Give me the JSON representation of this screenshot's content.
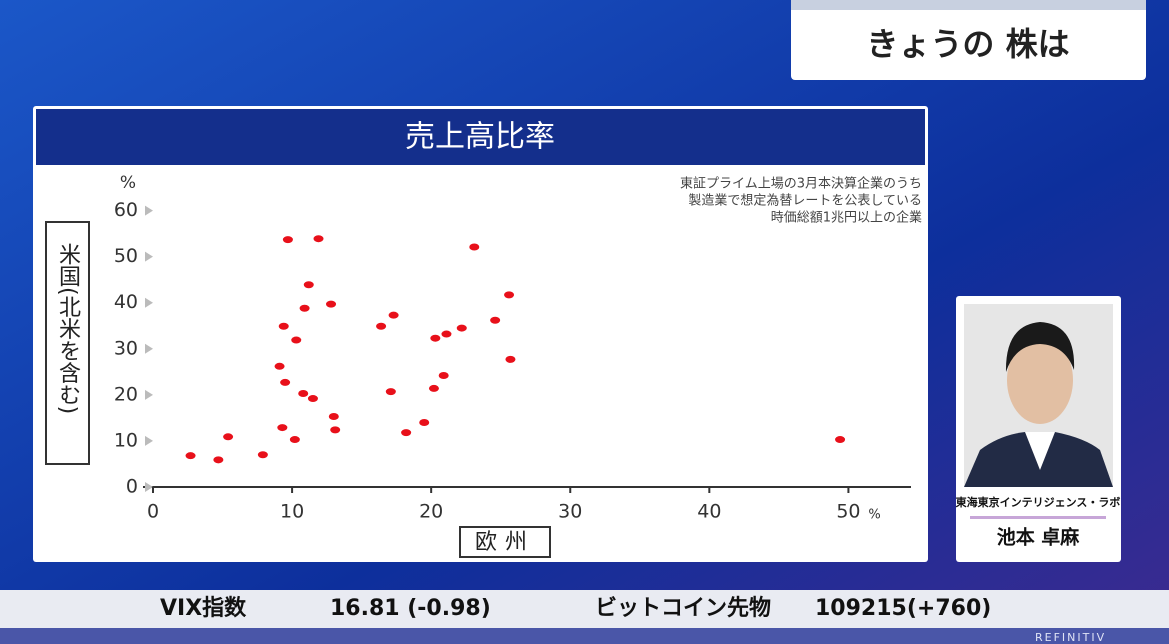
{
  "header": {
    "title": "きょうの 株は"
  },
  "chart_data": {
    "type": "scatter",
    "title": "売上高比率",
    "note": [
      "東証プライム上場の3月本決算企業のうち",
      "製造業で想定為替レートを公表している",
      "時価総額1兆円以上の企業"
    ],
    "x_label": "欧州",
    "y_label": "米国(北米を含む)",
    "x_unit": "%",
    "y_unit": "%",
    "color": "#e8101a",
    "x": [
      2.7,
      4.7,
      5.4,
      7.9,
      9.1,
      9.3,
      9.5,
      9.4,
      9.7,
      10.2,
      10.3,
      10.8,
      10.9,
      11.2,
      11.5,
      11.9,
      12.8,
      13.0,
      13.1,
      16.4,
      17.3,
      17.1,
      18.2,
      19.5,
      20.2,
      20.3,
      20.9,
      21.1,
      22.2,
      23.1,
      24.6,
      25.6,
      25.7,
      49.4
    ],
    "values": [
      6.8,
      5.9,
      10.9,
      7.0,
      26.2,
      12.9,
      22.7,
      34.9,
      53.7,
      10.3,
      31.9,
      20.3,
      38.8,
      43.9,
      19.2,
      53.9,
      39.7,
      15.3,
      12.4,
      34.9,
      37.3,
      20.7,
      11.8,
      14.0,
      21.4,
      32.3,
      24.2,
      33.2,
      34.5,
      52.1,
      36.2,
      41.7,
      27.7,
      10.3
    ],
    "xlim": [
      0,
      54.5
    ],
    "ylim": [
      0,
      61
    ],
    "xticks": [
      0,
      10,
      20,
      30,
      40,
      50
    ],
    "yticks": [
      0,
      10,
      20,
      30,
      40,
      50,
      60
    ]
  },
  "presenter": {
    "organization": "東海東京インテリジェンス・ラボ",
    "name": "池本 卓麻"
  },
  "ticker": {
    "items": [
      {
        "label": "VIX指数",
        "value": "16.81 (-0.98)"
      },
      {
        "label": "ビットコイン先物",
        "value": "109215(+760)"
      }
    ],
    "brand": "REFINITIV"
  }
}
